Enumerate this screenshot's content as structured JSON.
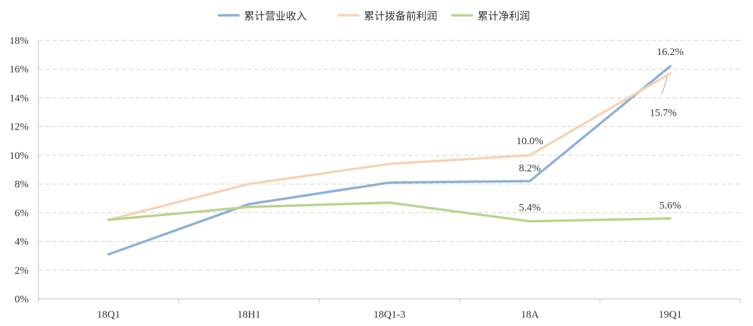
{
  "chart_data": {
    "type": "line",
    "title": "",
    "xlabel": "",
    "ylabel": "",
    "categories": [
      "18Q1",
      "18H1",
      "18Q1-3",
      "18A",
      "19Q1"
    ],
    "ylim": [
      0,
      18
    ],
    "yticks": [
      0,
      2,
      4,
      6,
      8,
      10,
      12,
      14,
      16,
      18
    ],
    "ytick_labels": [
      "0%",
      "2%",
      "4%",
      "6%",
      "8%",
      "10%",
      "12%",
      "14%",
      "16%",
      "18%"
    ],
    "grid": true,
    "legend_position": "top-center",
    "series": [
      {
        "name": "累计营业收入",
        "color": "#8eb0d9",
        "values": [
          3.1,
          6.6,
          8.1,
          8.2,
          16.2
        ],
        "labels": [
          null,
          null,
          null,
          "8.2%",
          "16.2%"
        ]
      },
      {
        "name": "累计拨备前利润",
        "color": "#f6d3b4",
        "values": [
          5.5,
          8.0,
          9.4,
          10.0,
          15.7
        ],
        "labels": [
          null,
          null,
          null,
          "10.0%",
          "15.7%"
        ]
      },
      {
        "name": "累计净利润",
        "color": "#b9d38e",
        "values": [
          5.5,
          6.4,
          6.7,
          5.4,
          5.6
        ],
        "labels": [
          null,
          null,
          null,
          "5.4%",
          "5.6%"
        ]
      }
    ]
  }
}
